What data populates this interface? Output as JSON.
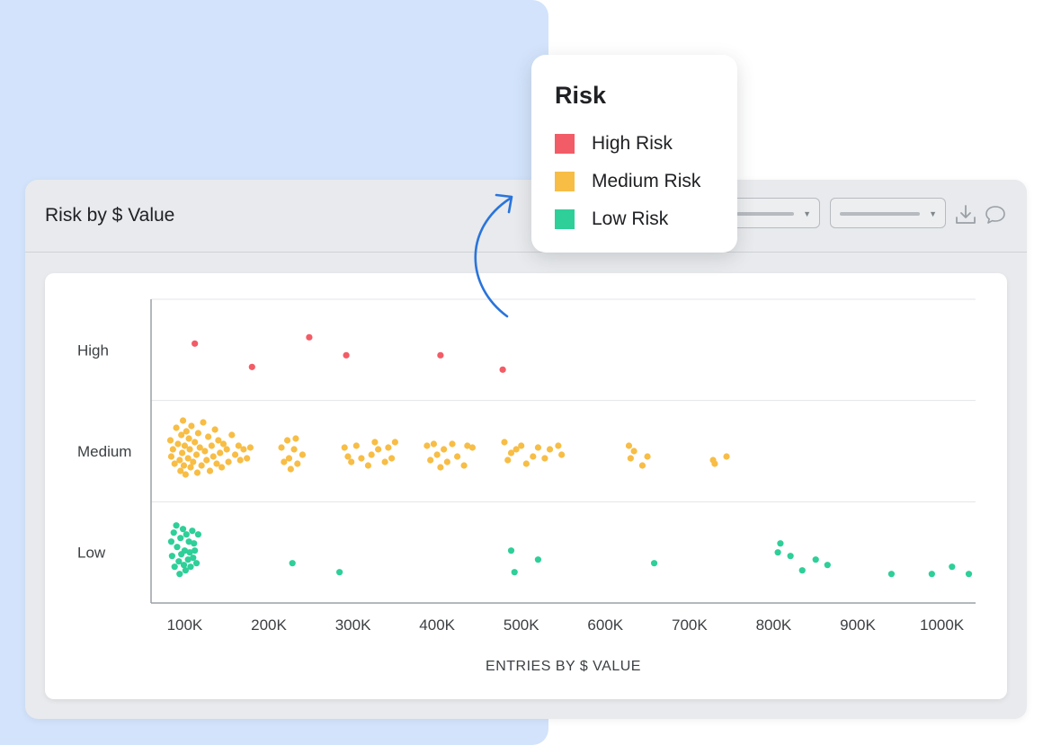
{
  "panel": {
    "title": "Risk by $ Value"
  },
  "legend": {
    "title": "Risk",
    "items": [
      {
        "label": "High Risk",
        "color": "#f25c66"
      },
      {
        "label": "Medium Risk",
        "color": "#f7bd45"
      },
      {
        "label": "Low Risk",
        "color": "#2ecf98"
      }
    ]
  },
  "icons": {
    "download": "download-icon",
    "comment": "comment-icon",
    "dropdown": "chevron-down-icon"
  },
  "chart_data": {
    "type": "scatter",
    "title": "",
    "xlabel": "ENTRIES BY $ VALUE",
    "ylabel": "",
    "categories": [
      "High",
      "Medium",
      "Low"
    ],
    "x_ticks": [
      "100K",
      "200K",
      "300K",
      "400K",
      "500K",
      "600K",
      "700K",
      "800K",
      "900K",
      "1000K"
    ],
    "x_tick_values": [
      100000,
      200000,
      300000,
      400000,
      500000,
      600000,
      700000,
      800000,
      900000,
      1000000
    ],
    "xlim": [
      60000,
      1040000
    ],
    "grid": true,
    "series": [
      {
        "name": "High Risk",
        "category": "High",
        "color": "#f25c66",
        "x": [
          112000,
          180000,
          248000,
          292000,
          404000,
          478000
        ],
        "offset": [
          -7,
          19,
          -14,
          6,
          6,
          22
        ]
      },
      {
        "name": "Medium Risk",
        "category": "Medium",
        "color": "#f7bd45",
        "x": [
          83000,
          84000,
          86000,
          88000,
          90000,
          92000,
          94000,
          95000,
          96000,
          97000,
          98000,
          99000,
          100000,
          101000,
          102000,
          104000,
          105000,
          106000,
          107000,
          108000,
          110000,
          112000,
          114000,
          115000,
          116000,
          118000,
          120000,
          122000,
          124000,
          126000,
          128000,
          130000,
          132000,
          134000,
          136000,
          138000,
          140000,
          142000,
          144000,
          146000,
          150000,
          152000,
          156000,
          160000,
          164000,
          166000,
          170000,
          174000,
          178000,
          215000,
          218000,
          222000,
          224000,
          226000,
          230000,
          232000,
          234000,
          240000,
          290000,
          294000,
          298000,
          304000,
          310000,
          318000,
          322000,
          326000,
          330000,
          338000,
          342000,
          346000,
          350000,
          388000,
          392000,
          396000,
          400000,
          404000,
          408000,
          412000,
          418000,
          424000,
          432000,
          436000,
          442000,
          480000,
          484000,
          488000,
          494000,
          500000,
          506000,
          514000,
          520000,
          528000,
          534000,
          544000,
          548000,
          628000,
          630000,
          634000,
          644000,
          650000,
          728000,
          730000,
          744000
        ],
        "offset": [
          -12,
          6,
          -2,
          14,
          -26,
          -8,
          10,
          22,
          -18,
          2,
          -34,
          16,
          -6,
          26,
          -22,
          8,
          -14,
          -2,
          18,
          -28,
          12,
          -10,
          4,
          24,
          -20,
          -4,
          16,
          -32,
          0,
          10,
          -16,
          22,
          -6,
          6,
          -24,
          14,
          -12,
          2,
          18,
          -8,
          -2,
          12,
          -18,
          4,
          -6,
          10,
          -2,
          8,
          -4,
          -4,
          12,
          -12,
          8,
          20,
          -2,
          -14,
          14,
          4,
          -4,
          6,
          12,
          -6,
          8,
          16,
          4,
          -10,
          -2,
          12,
          -4,
          8,
          -10,
          -6,
          10,
          -8,
          4,
          18,
          -2,
          12,
          -8,
          6,
          16,
          -6,
          -4,
          -10,
          10,
          2,
          -2,
          -6,
          14,
          6,
          -4,
          8,
          -2,
          -6,
          4,
          -6,
          8,
          0,
          16,
          6,
          10,
          14,
          6
        ]
      },
      {
        "name": "Low Risk",
        "category": "Low",
        "color": "#2ecf98",
        "x": [
          84000,
          85000,
          87000,
          88000,
          90000,
          91000,
          93000,
          94000,
          95000,
          96000,
          98000,
          99000,
          100000,
          101000,
          102000,
          104000,
          105000,
          106000,
          107000,
          109000,
          110000,
          111000,
          112000,
          114000,
          116000,
          228000,
          284000,
          488000,
          492000,
          520000,
          658000,
          805000,
          808000,
          820000,
          834000,
          850000,
          864000,
          940000,
          988000,
          1012000,
          1032000
        ],
        "offset": [
          -12,
          4,
          -22,
          16,
          -30,
          -6,
          10,
          24,
          -16,
          2,
          -26,
          14,
          -2,
          20,
          -20,
          8,
          -12,
          0,
          16,
          -24,
          6,
          -10,
          -2,
          12,
          -20,
          12,
          22,
          -2,
          22,
          8,
          12,
          0,
          -10,
          4,
          20,
          8,
          14,
          24,
          24,
          16,
          24
        ]
      }
    ]
  }
}
